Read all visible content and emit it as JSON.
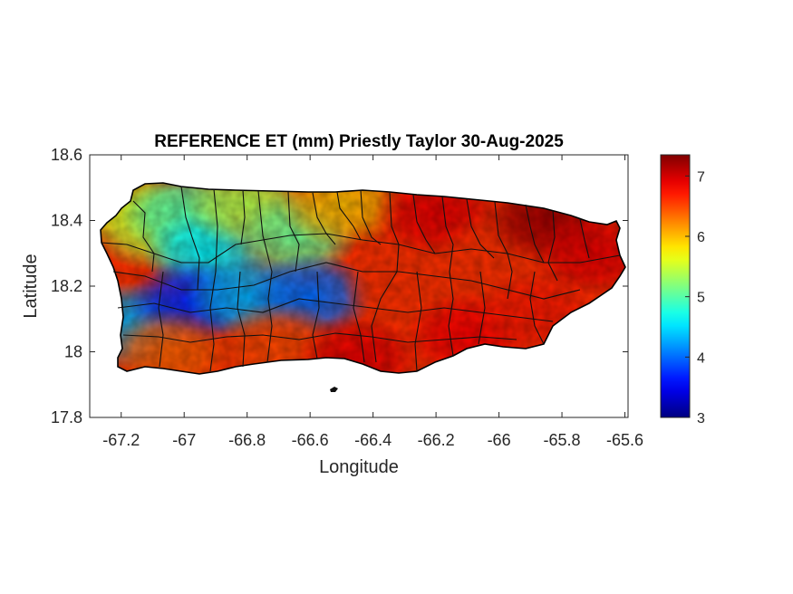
{
  "figure": {
    "title": "REFERENCE ET (mm) Priestly Taylor 30-Aug-2025",
    "xlabel": "Longitude",
    "ylabel": "Latitude"
  },
  "chart_data": {
    "type": "heatmap",
    "title": "REFERENCE ET (mm) Priestly Taylor 30-Aug-2025",
    "xlabel": "Longitude",
    "ylabel": "Latitude",
    "xlim": [
      -67.3,
      -65.59
    ],
    "ylim": [
      17.8,
      18.6
    ],
    "xticks": [
      -67.2,
      -67,
      -66.8,
      -66.6,
      -66.4,
      -66.2,
      -66,
      -65.8,
      -65.6
    ],
    "xtick_labels": [
      "-67.2",
      "-67",
      "-66.8",
      "-66.6",
      "-66.4",
      "-66.2",
      "-66",
      "-65.8",
      "-65.6"
    ],
    "yticks": [
      17.8,
      18,
      18.2,
      18.4,
      18.6
    ],
    "ytick_labels": [
      "17.8",
      "18",
      "18.2",
      "18.4",
      "18.6"
    ],
    "colormap": "jet",
    "colorbar": {
      "range": [
        3,
        7.35
      ],
      "ticks": [
        3,
        4,
        5,
        6,
        7
      ],
      "tick_labels": [
        "3",
        "4",
        "5",
        "6",
        "7"
      ]
    },
    "grid": false,
    "region": "Puerto Rico (municipality boundaries)",
    "regional_values": [
      {
        "lon": -67.2,
        "lat": 18.45,
        "value": 5.9
      },
      {
        "lon": -67.13,
        "lat": 18.28,
        "value": 6.6
      },
      {
        "lon": -67.1,
        "lat": 18.38,
        "value": 5.5
      },
      {
        "lon": -67.0,
        "lat": 18.42,
        "value": 5.0
      },
      {
        "lon": -66.93,
        "lat": 18.3,
        "value": 4.6
      },
      {
        "lon": -66.8,
        "lat": 18.45,
        "value": 5.4
      },
      {
        "lon": -66.65,
        "lat": 18.35,
        "value": 5.1
      },
      {
        "lon": -67.17,
        "lat": 18.08,
        "value": 4.3
      },
      {
        "lon": -66.98,
        "lat": 18.15,
        "value": 3.7
      },
      {
        "lon": -66.8,
        "lat": 18.17,
        "value": 4.3
      },
      {
        "lon": -66.6,
        "lat": 18.17,
        "value": 4.0
      },
      {
        "lon": -66.5,
        "lat": 18.45,
        "value": 6.0
      },
      {
        "lon": -67.05,
        "lat": 18.0,
        "value": 6.4
      },
      {
        "lon": -66.7,
        "lat": 18.02,
        "value": 6.5
      },
      {
        "lon": -66.45,
        "lat": 17.98,
        "value": 6.9
      },
      {
        "lon": -66.3,
        "lat": 18.2,
        "value": 6.6
      },
      {
        "lon": -66.2,
        "lat": 18.42,
        "value": 6.9
      },
      {
        "lon": -66.0,
        "lat": 18.3,
        "value": 6.6
      },
      {
        "lon": -65.85,
        "lat": 18.4,
        "value": 7.2
      },
      {
        "lon": -65.7,
        "lat": 18.3,
        "value": 6.9
      },
      {
        "lon": -66.1,
        "lat": 18.05,
        "value": 6.8
      },
      {
        "lon": -65.88,
        "lat": 18.12,
        "value": 6.7
      }
    ]
  }
}
